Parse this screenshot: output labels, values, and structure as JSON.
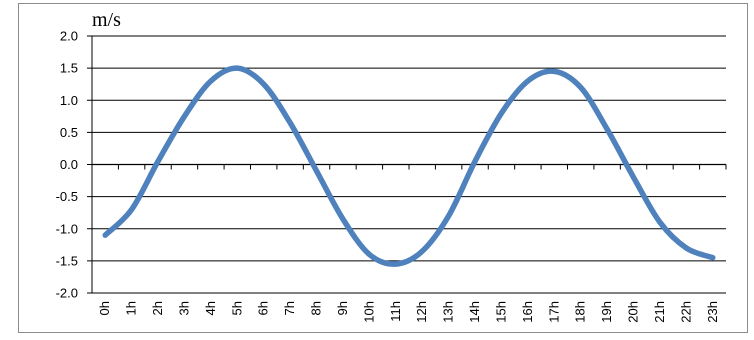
{
  "chart_data": {
    "type": "line",
    "title": "",
    "xlabel": "",
    "ylabel": "m/s",
    "ylim": [
      -2.0,
      2.0
    ],
    "yticks": [
      "2.0",
      "1.5",
      "1.0",
      "0.5",
      "0.0",
      "-0.5",
      "-1.0",
      "-1.5",
      "-2.0"
    ],
    "grid": true,
    "legend": "none",
    "categories": [
      "0h",
      "1h",
      "2h",
      "3h",
      "4h",
      "5h",
      "6h",
      "7h",
      "8h",
      "9h",
      "10h",
      "11h",
      "12h",
      "13h",
      "14h",
      "15h",
      "16h",
      "17h",
      "18h",
      "19h",
      "20h",
      "21h",
      "22h",
      "23h"
    ],
    "series": [
      {
        "color": "#4f81bd",
        "values": [
          -1.1,
          -0.7,
          0.05,
          0.75,
          1.3,
          1.5,
          1.25,
          0.65,
          -0.1,
          -0.85,
          -1.4,
          -1.55,
          -1.35,
          -0.8,
          0.05,
          0.8,
          1.3,
          1.45,
          1.2,
          0.55,
          -0.2,
          -0.9,
          -1.3,
          -1.45
        ]
      }
    ]
  }
}
